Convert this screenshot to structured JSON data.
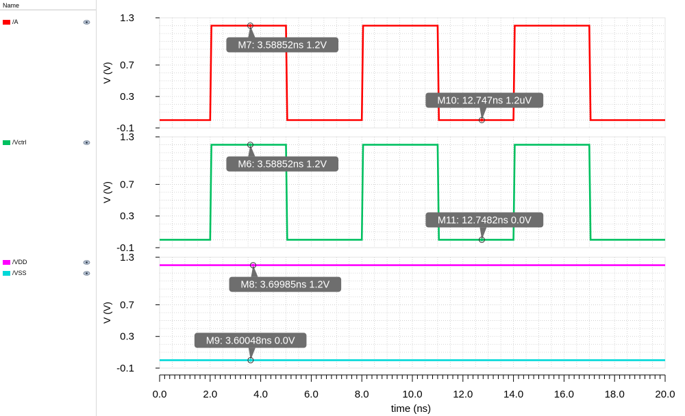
{
  "sidebar": {
    "header": "Name",
    "signals": [
      {
        "label": "/A",
        "color": "#ff0000",
        "icon": "eye-icon"
      },
      {
        "label": "/Vctrl",
        "color": "#00c060",
        "icon": "eye-icon"
      },
      {
        "label": "/VDD",
        "color": "#ff00ff",
        "icon": "eye-icon"
      },
      {
        "label": "/VSS",
        "color": "#00d8d8",
        "icon": "eye-icon"
      }
    ]
  },
  "chart_data": {
    "type": "line",
    "xlabel": "time (ns)",
    "xlim": [
      0,
      20
    ],
    "xticks": [
      "0.0",
      "2.0",
      "4.0",
      "6.0",
      "8.0",
      "10.0",
      "12.0",
      "14.0",
      "16.0",
      "18.0",
      "20.0"
    ],
    "grid": true,
    "panels": [
      {
        "ylabel": "V (V)",
        "ylim": [
          -0.1,
          1.3
        ],
        "yticks": [
          "1.3",
          "0.7",
          "0.3",
          "-0.1"
        ],
        "series": [
          {
            "name": "/A",
            "color": "#ff0000",
            "x": [
              0,
              2.0,
              2.05,
              5.0,
              5.05,
              8.0,
              8.05,
              11.0,
              11.05,
              14.0,
              14.05,
              17.0,
              17.05,
              20.0
            ],
            "y": [
              0,
              0,
              1.2,
              1.2,
              0,
              0,
              1.2,
              1.2,
              0,
              0,
              1.2,
              1.2,
              0,
              0
            ]
          }
        ],
        "markers": [
          {
            "label": "M7: 3.58852ns 1.2V",
            "x": 3.58852,
            "y": 1.2
          },
          {
            "label": "M10: 12.747ns 1.2uV",
            "x": 12.747,
            "y": 0
          }
        ]
      },
      {
        "ylabel": "V (V)",
        "ylim": [
          -0.1,
          1.3
        ],
        "yticks": [
          "1.3",
          "0.7",
          "0.3",
          "-0.1"
        ],
        "series": [
          {
            "name": "/Vctrl",
            "color": "#00c060",
            "x": [
              0,
              2.0,
              2.05,
              5.0,
              5.05,
              8.0,
              8.05,
              11.0,
              11.05,
              14.0,
              14.05,
              17.0,
              17.05,
              20.0
            ],
            "y": [
              0,
              0,
              1.2,
              1.2,
              0,
              0,
              1.2,
              1.2,
              0,
              0,
              1.2,
              1.2,
              0,
              0
            ]
          }
        ],
        "markers": [
          {
            "label": "M6: 3.58852ns 1.2V",
            "x": 3.58852,
            "y": 1.2
          },
          {
            "label": "M11: 12.7482ns 0.0V",
            "x": 12.7482,
            "y": 0
          }
        ]
      },
      {
        "ylabel": "V (V)",
        "ylim": [
          -0.1,
          1.3
        ],
        "yticks": [
          "1.3",
          "0.7",
          "0.3",
          "-0.1"
        ],
        "series": [
          {
            "name": "/VDD",
            "color": "#ff00ff",
            "x": [
              0,
              20
            ],
            "y": [
              1.2,
              1.2
            ]
          },
          {
            "name": "/VSS",
            "color": "#00d8d8",
            "x": [
              0,
              20
            ],
            "y": [
              0,
              0
            ]
          }
        ],
        "markers": [
          {
            "label": "M8: 3.69985ns 1.2V",
            "x": 3.69985,
            "y": 1.2
          },
          {
            "label": "M9: 3.60048ns 0.0V",
            "x": 3.60048,
            "y": 0
          }
        ]
      }
    ]
  }
}
